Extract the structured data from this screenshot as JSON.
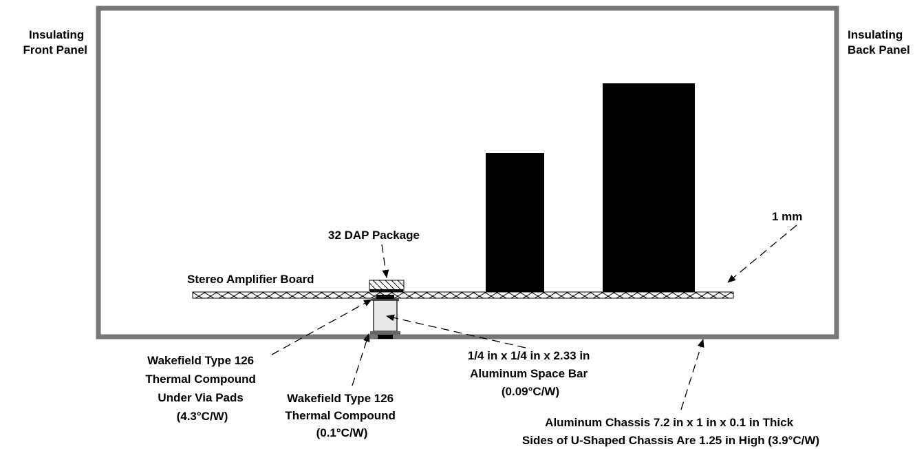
{
  "labels": {
    "front_panel": [
      "Insulating",
      "Front Panel"
    ],
    "back_panel": [
      "Insulating",
      "Back Panel"
    ],
    "thickness": "1 mm",
    "package": "32 DAP Package",
    "board": "Stereo Amplifier Board",
    "compound_via": [
      "Wakefield Type 126",
      "Thermal Compound",
      "Under Via Pads",
      "(4.3°C/W)"
    ],
    "compound": [
      "Wakefield Type 126",
      "Thermal Compound",
      "(0.1°C/W)"
    ],
    "space_bar": [
      "1/4 in x 1/4 in x 2.33 in",
      "Aluminum Space Bar",
      "(0.09°C/W)"
    ],
    "chassis": [
      "Aluminum Chassis 7.2 in x 1 in x 0.1 in Thick",
      "Sides of U-Shaped Chassis Are 1.25 in High (3.9°C/W)"
    ]
  },
  "colors": {
    "chassis": "#777777",
    "components": "#000000",
    "space_bar": "#e8e8e8",
    "compound_pad": "#666666"
  }
}
